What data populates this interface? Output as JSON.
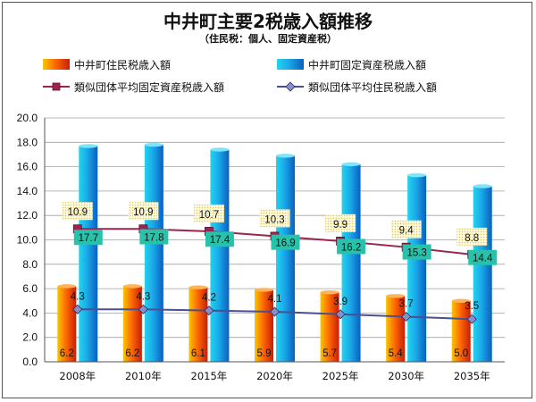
{
  "chart_data": {
    "type": "bar",
    "title": "中井町主要2税歳入額推移",
    "subtitle": "（住民税：個人、固定資産税）",
    "categories": [
      "2008年",
      "2010年",
      "2015年",
      "2020年",
      "2025年",
      "2030年",
      "2035年"
    ],
    "ylim": [
      0,
      20
    ],
    "yticks": [
      "0.0",
      "2.0",
      "4.0",
      "6.0",
      "8.0",
      "10.0",
      "12.0",
      "14.0",
      "16.0",
      "18.0",
      "20.0"
    ],
    "grid": true,
    "legend_position": "top",
    "series": [
      {
        "name": "中井町住民税歳入額",
        "kind": "bar",
        "values": [
          6.2,
          6.2,
          6.1,
          5.9,
          5.7,
          5.4,
          5.0
        ],
        "labels": [
          "6.2",
          "6.2",
          "6.1",
          "5.9",
          "5.7",
          "5.4",
          "5.0"
        ],
        "color": "#e8340c"
      },
      {
        "name": "中井町固定資産税歳入額",
        "kind": "bar",
        "values": [
          17.7,
          17.8,
          17.4,
          16.9,
          16.2,
          15.3,
          14.4
        ],
        "labels": [
          "17.7",
          "17.8",
          "17.4",
          "16.9",
          "16.2",
          "15.3",
          "14.4"
        ],
        "color": "#1a9ae0"
      },
      {
        "name": "類似団体平均固定資産税歳入額",
        "kind": "line",
        "marker": "square",
        "values": [
          10.9,
          10.9,
          10.7,
          10.3,
          9.9,
          9.4,
          8.8
        ],
        "labels": [
          "10.9",
          "10.9",
          "10.7",
          "10.3",
          "9.9",
          "9.4",
          "8.8"
        ],
        "color": "#9b2550"
      },
      {
        "name": "類似団体平均住民税歳入額",
        "kind": "line",
        "marker": "diamond",
        "values": [
          4.3,
          4.3,
          4.2,
          4.1,
          3.9,
          3.7,
          3.5
        ],
        "labels": [
          "4.3",
          "4.3",
          "4.2",
          "4.1",
          "3.9",
          "3.7",
          "3.5"
        ],
        "color": "#4a4f8f"
      }
    ]
  }
}
